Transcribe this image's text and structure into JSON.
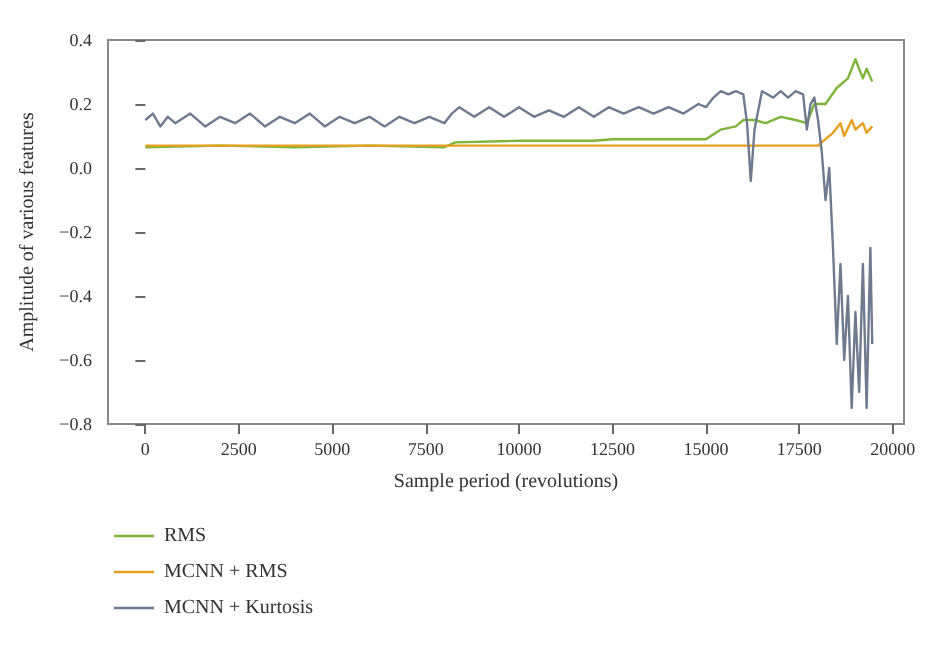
{
  "chart_data": {
    "type": "line",
    "xlabel": "Sample period (revolutions)",
    "ylabel": "Amplitude of various features",
    "xlim": [
      -1000,
      20300
    ],
    "xticks": [
      0,
      2500,
      5000,
      7500,
      10000,
      12500,
      15000,
      17500,
      20000
    ],
    "ylim": [
      -0.8,
      0.4
    ],
    "yticks": [
      -0.8,
      -0.6,
      -0.4,
      -0.2,
      {
        "value": 0,
        "label": "0.0"
      },
      0.2,
      0.4
    ],
    "grid": false,
    "legend": "bottom left",
    "marker": "none",
    "line_style": "solid",
    "series": [
      {
        "name": "RMS",
        "color": "#7db53a",
        "x": [
          0,
          2000,
          4000,
          6000,
          8000,
          8300,
          10000,
          12000,
          12500,
          15000,
          15400,
          15800,
          16000,
          16300,
          16600,
          17000,
          17400,
          17700,
          17900,
          18200,
          18500,
          18800,
          19000,
          19200,
          19300,
          19450
        ],
        "values": [
          0.065,
          0.07,
          0.065,
          0.07,
          0.065,
          0.08,
          0.085,
          0.085,
          0.09,
          0.09,
          0.12,
          0.13,
          0.15,
          0.15,
          0.14,
          0.16,
          0.15,
          0.14,
          0.2,
          0.2,
          0.25,
          0.28,
          0.34,
          0.28,
          0.31,
          0.27
        ]
      },
      {
        "name": "MCNN + RMS",
        "color": "#e8a020",
        "x": [
          0,
          18000,
          18200,
          18400,
          18600,
          18700,
          18900,
          19000,
          19200,
          19300,
          19450
        ],
        "values": [
          0.07,
          0.07,
          0.09,
          0.11,
          0.14,
          0.1,
          0.15,
          0.12,
          0.14,
          0.11,
          0.13
        ]
      },
      {
        "name": "MCNN + Kurtosis",
        "color": "#6e7a8e",
        "x": [
          0,
          200,
          400,
          600,
          800,
          1200,
          1600,
          2000,
          2400,
          2800,
          3200,
          3600,
          4000,
          4400,
          4800,
          5200,
          5600,
          6000,
          6400,
          6800,
          7200,
          7600,
          8000,
          8200,
          8400,
          8800,
          9200,
          9600,
          10000,
          10400,
          10800,
          11200,
          11600,
          12000,
          12400,
          12800,
          13200,
          13600,
          14000,
          14400,
          14800,
          15000,
          15200,
          15400,
          15600,
          15800,
          16000,
          16100,
          16200,
          16300,
          16500,
          16800,
          17000,
          17200,
          17400,
          17600,
          17700,
          17800,
          17900,
          18000,
          18100,
          18200,
          18300,
          18400,
          18500,
          18600,
          18700,
          18800,
          18900,
          19000,
          19100,
          19200,
          19300,
          19400,
          19450
        ],
        "values": [
          0.15,
          0.17,
          0.13,
          0.16,
          0.14,
          0.17,
          0.13,
          0.16,
          0.14,
          0.17,
          0.13,
          0.16,
          0.14,
          0.17,
          0.13,
          0.16,
          0.14,
          0.16,
          0.13,
          0.16,
          0.14,
          0.16,
          0.14,
          0.17,
          0.19,
          0.16,
          0.19,
          0.16,
          0.19,
          0.16,
          0.18,
          0.16,
          0.19,
          0.16,
          0.19,
          0.17,
          0.19,
          0.17,
          0.19,
          0.17,
          0.2,
          0.19,
          0.22,
          0.24,
          0.23,
          0.24,
          0.23,
          0.14,
          -0.04,
          0.12,
          0.24,
          0.22,
          0.24,
          0.22,
          0.24,
          0.23,
          0.12,
          0.2,
          0.22,
          0.15,
          0.05,
          -0.1,
          0.0,
          -0.25,
          -0.55,
          -0.3,
          -0.6,
          -0.4,
          -0.75,
          -0.45,
          -0.7,
          -0.3,
          -0.75,
          -0.25,
          -0.55
        ]
      }
    ]
  }
}
